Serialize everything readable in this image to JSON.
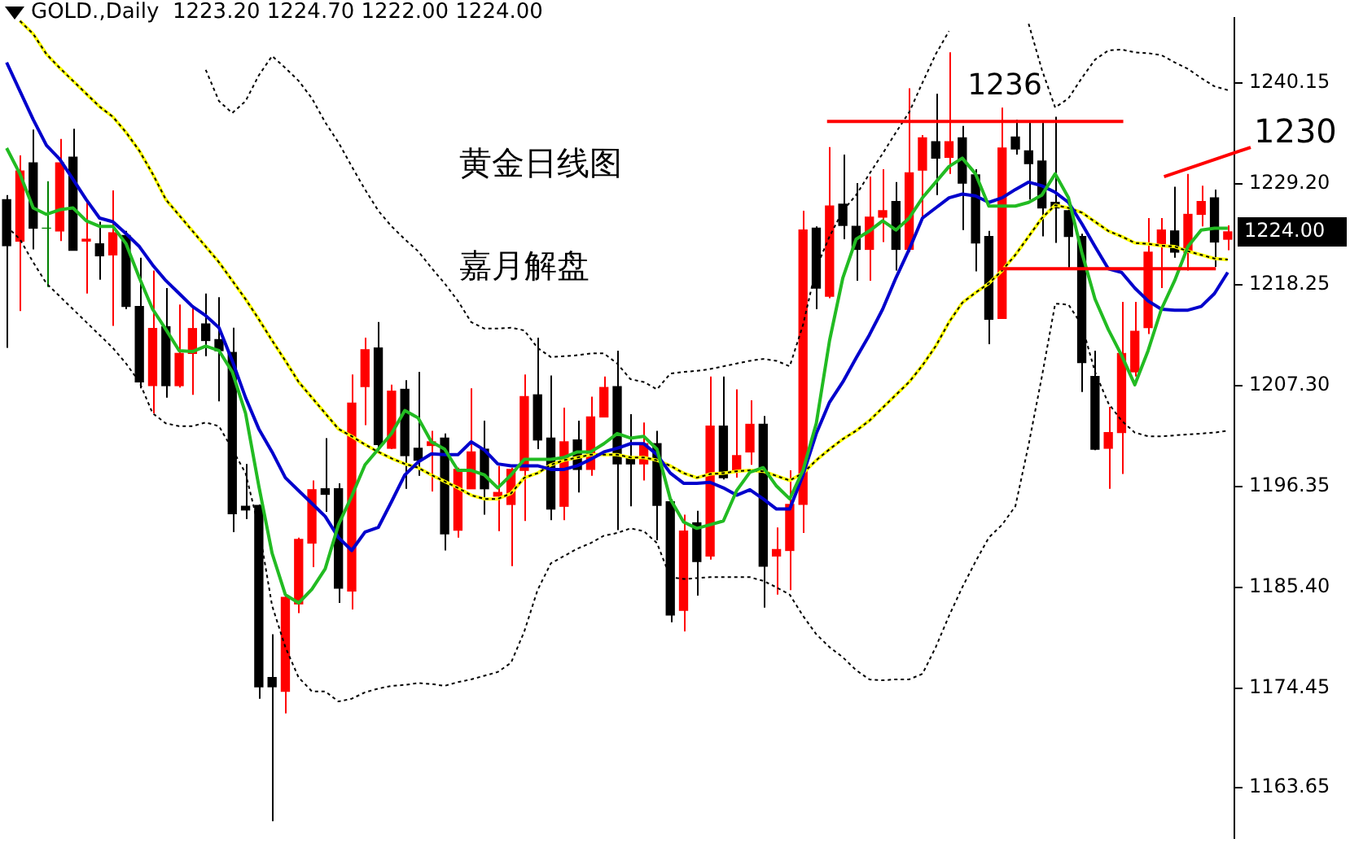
{
  "chart_data": {
    "type": "candlestick",
    "title": "GOLD.,Daily  1223.20 1224.70 1222.00 1224.00",
    "categories": [
      null,
      null,
      null,
      null,
      null,
      null,
      null,
      null,
      null,
      null,
      null,
      null,
      null,
      null,
      null,
      null,
      null,
      null,
      null,
      null,
      null,
      null,
      null,
      null,
      null,
      null,
      null,
      null,
      null,
      null,
      null,
      null,
      null,
      null,
      null,
      null,
      null,
      null,
      null,
      null,
      null,
      null,
      null,
      null,
      null,
      null,
      null,
      null,
      null,
      null,
      null,
      null,
      null,
      null,
      null,
      null,
      null,
      null,
      null,
      null,
      null,
      null,
      null,
      null,
      null,
      null,
      null,
      null,
      null,
      null,
      null,
      null,
      null,
      null,
      null,
      null,
      null,
      null,
      null,
      null,
      null,
      null,
      null,
      null,
      null,
      null,
      null,
      null,
      null,
      null,
      null,
      null,
      null
    ],
    "ohlc": [
      [
        1227.5,
        1228.0,
        1211.4,
        1222.5
      ],
      [
        1223.0,
        1232.3,
        1215.4,
        1230.6
      ],
      [
        1231.5,
        1235.1,
        1222.1,
        1224.4
      ],
      [
        1224.4,
        1229.5,
        1218.0,
        1224.4
      ],
      [
        1224.1,
        1234.1,
        1223.0,
        1231.5
      ],
      [
        1232.1,
        1235.2,
        1222.0,
        1222.0
      ],
      [
        1223.0,
        1227.3,
        1217.3,
        1223.2
      ],
      [
        1222.7,
        1225.1,
        1218.8,
        1221.4
      ],
      [
        1221.5,
        1228.5,
        1213.8,
        1223.9
      ],
      [
        1223.6,
        1224.1,
        1215.6,
        1215.9
      ],
      [
        1215.9,
        1221.2,
        1207.0,
        1207.7
      ],
      [
        1207.3,
        1219.8,
        1204.3,
        1213.5
      ],
      [
        1213.7,
        1217.9,
        1206.0,
        1207.3
      ],
      [
        1207.3,
        1216.1,
        1207.1,
        1210.8
      ],
      [
        1210.8,
        1215.8,
        1206.3,
        1213.5
      ],
      [
        1214.0,
        1217.3,
        1210.5,
        1212.2
      ],
      [
        1212.3,
        1216.9,
        1205.6,
        1211.1
      ],
      [
        1210.9,
        1213.6,
        1191.4,
        1193.4
      ],
      [
        1194.2,
        1198.8,
        1192.8,
        1193.8
      ],
      [
        1194.3,
        1194.4,
        1173.3,
        1174.6
      ],
      [
        1175.6,
        1180.3,
        1160.0,
        1174.6
      ],
      [
        1174.1,
        1184.5,
        1171.7,
        1184.3
      ],
      [
        1183.6,
        1190.8,
        1182.6,
        1190.6
      ],
      [
        1190.2,
        1197.0,
        1187.6,
        1196.0
      ],
      [
        1196.1,
        1201.6,
        1193.6,
        1195.5
      ],
      [
        1196.1,
        1196.7,
        1183.7,
        1185.3
      ],
      [
        1185.0,
        1208.5,
        1183.0,
        1205.4
      ],
      [
        1207.2,
        1212.5,
        1203.0,
        1211.2
      ],
      [
        1211.4,
        1214.2,
        1200.2,
        1200.9
      ],
      [
        1200.5,
        1207.4,
        1200.4,
        1206.7
      ],
      [
        1206.9,
        1207.9,
        1196.1,
        1199.7
      ],
      [
        1200.5,
        1208.8,
        1197.5,
        1199.2
      ],
      [
        1200.8,
        1202.4,
        1195.8,
        1201.2
      ],
      [
        1201.6,
        1202.1,
        1189.4,
        1191.2
      ],
      [
        1191.6,
        1198.4,
        1190.8,
        1198.2
      ],
      [
        1196.1,
        1207.0,
        1196.1,
        1200.1
      ],
      [
        1200.4,
        1203.5,
        1193.3,
        1196.1
      ],
      [
        1195.3,
        1198.6,
        1191.5,
        1195.7
      ],
      [
        1194.4,
        1198.4,
        1187.7,
        1198.2
      ],
      [
        1198.1,
        1208.5,
        1192.6,
        1206.1
      ],
      [
        1206.3,
        1212.5,
        1200.4,
        1201.4
      ],
      [
        1201.6,
        1208.4,
        1192.7,
        1193.9
      ],
      [
        1194.2,
        1204.9,
        1192.7,
        1201.2
      ],
      [
        1201.4,
        1203.5,
        1195.7,
        1198.2
      ],
      [
        1198.2,
        1206.1,
        1197.5,
        1203.9
      ],
      [
        1203.9,
        1208.3,
        1203.9,
        1207.1
      ],
      [
        1207.2,
        1211.1,
        1191.6,
        1198.8
      ],
      [
        1199.4,
        1204.2,
        1194.2,
        1198.8
      ],
      [
        1198.8,
        1203.3,
        1197.0,
        1201.0
      ],
      [
        1201.0,
        1202.4,
        1190.5,
        1194.3
      ],
      [
        1194.7,
        1195.0,
        1181.6,
        1182.4
      ],
      [
        1182.9,
        1193.3,
        1180.6,
        1191.5
      ],
      [
        1192.4,
        1193.7,
        1184.5,
        1188.2
      ],
      [
        1188.8,
        1208.3,
        1188.4,
        1202.9
      ],
      [
        1202.9,
        1208.3,
        1197.1,
        1197.3
      ],
      [
        1198.1,
        1206.9,
        1197.3,
        1199.7
      ],
      [
        1200.1,
        1205.7,
        1198.7,
        1203.1
      ],
      [
        1203.1,
        1204.0,
        1183.2,
        1187.7
      ],
      [
        1188.8,
        1191.9,
        1184.6,
        1189.5
      ],
      [
        1189.4,
        1198.1,
        1185.1,
        1194.4
      ],
      [
        1194.4,
        1226.3,
        1191.3,
        1224.2
      ],
      [
        1224.4,
        1224.6,
        1215.6,
        1217.9
      ],
      [
        1217.0,
        1233.2,
        1216.8,
        1226.8
      ],
      [
        1227.0,
        1232.4,
        1223.2,
        1224.7
      ],
      [
        1224.6,
        1229.3,
        1218.7,
        1222.1
      ],
      [
        1222.1,
        1230.0,
        1218.7,
        1225.6
      ],
      [
        1225.6,
        1230.8,
        1222.9,
        1226.3
      ],
      [
        1227.3,
        1229.4,
        1219.8,
        1222.1
      ],
      [
        1222.1,
        1239.6,
        1221.8,
        1230.4
      ],
      [
        1230.7,
        1234.5,
        1225.5,
        1234.2
      ],
      [
        1233.8,
        1239.0,
        1228.0,
        1232.0
      ],
      [
        1232.1,
        1243.5,
        1230.3,
        1233.8
      ],
      [
        1234.2,
        1235.5,
        1224.2,
        1229.3
      ],
      [
        1230.2,
        1230.8,
        1219.7,
        1222.8
      ],
      [
        1223.5,
        1224.1,
        1211.8,
        1214.5
      ],
      [
        1214.6,
        1237.5,
        1214.6,
        1233.1
      ],
      [
        1234.3,
        1236.2,
        1232.4,
        1233.0
      ],
      [
        1232.8,
        1235.9,
        1227.5,
        1231.4
      ],
      [
        1231.7,
        1235.9,
        1223.5,
        1226.6
      ],
      [
        1227.2,
        1236.5,
        1222.8,
        1226.6
      ],
      [
        1226.3,
        1226.6,
        1220.1,
        1223.5
      ],
      [
        1223.5,
        1223.8,
        1206.6,
        1209.8
      ],
      [
        1208.3,
        1211.1,
        1200.3,
        1200.4
      ],
      [
        1200.5,
        1205.0,
        1196.1,
        1202.2
      ],
      [
        1202.2,
        1216.4,
        1197.7,
        1210.8
      ],
      [
        1208.8,
        1216.4,
        1208.3,
        1213.2
      ],
      [
        1213.6,
        1225.5,
        1212.9,
        1221.8
      ],
      [
        1222.7,
        1225.5,
        1217.9,
        1224.2
      ],
      [
        1224.1,
        1228.9,
        1221.2,
        1221.8
      ],
      [
        1221.8,
        1230.3,
        1219.8,
        1225.9
      ],
      [
        1225.9,
        1229.0,
        1224.6,
        1227.3
      ],
      [
        1227.7,
        1228.6,
        1220.2,
        1222.9
      ],
      [
        1223.2,
        1224.7,
        1222.0,
        1224.0
      ]
    ],
    "colors": [
      "#000000",
      "#ff0000",
      "#000000",
      "#008000",
      "#ff0000",
      "#000000",
      "#ff0000",
      "#000000",
      "#ff0000",
      "#000000",
      "#000000",
      "#ff0000",
      "#000000",
      "#ff0000",
      "#ff0000",
      "#000000",
      "#000000",
      "#000000",
      "#000000",
      "#000000",
      "#000000",
      "#ff0000",
      "#ff0000",
      "#ff0000",
      "#000000",
      "#000000",
      "#ff0000",
      "#ff0000",
      "#000000",
      "#ff0000",
      "#000000",
      "#000000",
      "#ff0000",
      "#000000",
      "#ff0000",
      "#ff0000",
      "#000000",
      "#ff0000",
      "#ff0000",
      "#ff0000",
      "#000000",
      "#000000",
      "#ff0000",
      "#000000",
      "#ff0000",
      "#ff0000",
      "#000000",
      "#000000",
      "#ff0000",
      "#000000",
      "#000000",
      "#ff0000",
      "#000000",
      "#ff0000",
      "#000000",
      "#ff0000",
      "#ff0000",
      "#000000",
      "#ff0000",
      "#ff0000",
      "#ff0000",
      "#000000",
      "#ff0000",
      "#000000",
      "#000000",
      "#ff0000",
      "#ff0000",
      "#000000",
      "#ff0000",
      "#ff0000",
      "#000000",
      "#ff0000",
      "#000000",
      "#000000",
      "#000000",
      "#ff0000",
      "#000000",
      "#000000",
      "#000000",
      "#000000",
      "#000000",
      "#000000",
      "#000000",
      "#ff0000",
      "#ff0000",
      "#ff0000",
      "#ff0000",
      "#ff0000",
      "#000000",
      "#ff0000",
      "#ff0000",
      "#000000",
      "#ff0000"
    ],
    "series": [
      {
        "type": "line",
        "color": "#000000",
        "line_style": "dotted",
        "values": [
          null,
          null,
          null,
          null,
          null,
          null,
          null,
          null,
          null,
          null,
          null,
          null,
          null,
          null,
          null,
          1241.6,
          1238.2,
          1236.9,
          1238.2,
          1241.0,
          1243.1,
          1241.8,
          1240.4,
          1238.5,
          1235.9,
          1233.7,
          1231.1,
          1228.6,
          1226.3,
          1224.6,
          1223.2,
          1221.9,
          1220.1,
          1218.4,
          1216.5,
          1214.2,
          1213.5,
          1213.5,
          1213.6,
          1213.3,
          1211.4,
          1210.4,
          1210.5,
          1210.6,
          1210.8,
          1210.8,
          1209.7,
          1208.0,
          1207.7,
          1206.9,
          1208.6,
          1208.8,
          1208.9,
          1209.1,
          1209.4,
          1209.7,
          1210.0,
          1210.2,
          1210.0,
          1209.4,
          1213.9,
          1220.1,
          1223.5,
          1226.3,
          1228.0,
          1230.3,
          1232.5,
          1234.8,
          1237.0,
          1240.2,
          1243.3,
          1245.8,
          null,
          null,
          null,
          null,
          null,
          1246.6,
          1241.6,
          1237.5,
          1238.5,
          1240.7,
          1242.7,
          1243.7,
          1243.8,
          1243.5,
          1243.4,
          1243.2,
          1242.4,
          1241.7,
          1240.7,
          1239.8,
          1239.4
        ]
      },
      {
        "type": "line",
        "color": "#000000",
        "line_style": "dotted",
        "values": [
          1224.6,
          1223.2,
          1220.7,
          1218.4,
          1217.0,
          1215.6,
          1214.2,
          1212.8,
          1211.4,
          1209.7,
          1207.7,
          1204.3,
          1203.2,
          1202.9,
          1202.9,
          1203.3,
          1202.9,
          1200.4,
          1197.8,
          1191.9,
          1183.4,
          1178.9,
          1175.6,
          1174.1,
          1174.1,
          1173.0,
          1173.3,
          1174.0,
          1174.4,
          1174.7,
          1174.8,
          1175.0,
          1174.9,
          1174.7,
          1175.1,
          1175.4,
          1175.8,
          1176.2,
          1177.2,
          1180.6,
          1185.1,
          1188.0,
          1188.8,
          1189.6,
          1190.2,
          1191.0,
          1191.3,
          1191.8,
          1191.5,
          1190.2,
          1186.5,
          1186.3,
          1186.4,
          1186.5,
          1186.5,
          1186.5,
          1186.5,
          1186.1,
          1185.4,
          1184.6,
          1182.3,
          1180.3,
          1178.9,
          1177.8,
          1176.4,
          1175.4,
          1175.3,
          1175.4,
          1175.4,
          1176.0,
          1178.9,
          1182.3,
          1185.4,
          1188.2,
          1190.8,
          1192.2,
          1194.2,
          1200.9,
          1208.3,
          1216.2,
          1216.1,
          1213.9,
          1208.8,
          1205.4,
          1203.5,
          1202.2,
          1201.8,
          1201.8,
          1201.9,
          1202.0,
          1202.1,
          1202.2,
          1202.4
        ]
      },
      {
        "type": "line",
        "color": "#ffff00",
        "values": [
          null,
          1246.9,
          1245.5,
          1243.3,
          1241.8,
          1240.4,
          1239.0,
          1237.6,
          1236.5,
          1234.8,
          1232.8,
          1230.3,
          1227.5,
          1225.8,
          1224.1,
          1222.4,
          1220.7,
          1218.7,
          1216.7,
          1214.5,
          1212.2,
          1210.0,
          1207.7,
          1206.0,
          1204.3,
          1202.6,
          1201.8,
          1200.9,
          1200.1,
          1199.4,
          1198.8,
          1198.4,
          1197.6,
          1196.9,
          1196.2,
          1195.4,
          1195.0,
          1195.0,
          1195.6,
          1197.3,
          1197.8,
          1198.7,
          1199.2,
          1199.5,
          1199.8,
          1199.8,
          1199.8,
          1199.5,
          1199.5,
          1199.2,
          1198.6,
          1197.8,
          1197.3,
          1197.7,
          1197.8,
          1198.0,
          1198.1,
          1198.0,
          1197.5,
          1197.0,
          1197.8,
          1199.2,
          1200.4,
          1201.5,
          1202.4,
          1203.5,
          1204.9,
          1206.3,
          1207.7,
          1209.5,
          1211.6,
          1214.2,
          1216.3,
          1217.4,
          1218.4,
          1219.8,
          1221.5,
          1223.5,
          1225.5,
          1226.9,
          1226.6,
          1226.1,
          1225.1,
          1224.1,
          1223.5,
          1222.8,
          1222.7,
          1222.5,
          1222.4,
          1221.9,
          1221.5,
          1221.1,
          1221.0
        ]
      },
      {
        "type": "line",
        "color": "#000000",
        "line_style": "dotted",
        "values": [
          null,
          1246.9,
          1245.5,
          1243.3,
          1241.8,
          1240.4,
          1239.0,
          1237.6,
          1236.5,
          1234.8,
          1232.8,
          1230.3,
          1227.5,
          1225.8,
          1224.1,
          1222.4,
          1220.7,
          1218.7,
          1216.7,
          1214.5,
          1212.2,
          1210.0,
          1207.7,
          1206.0,
          1204.3,
          1202.6,
          1201.8,
          1200.9,
          1200.1,
          1199.4,
          1198.8,
          1198.4,
          1197.6,
          1196.9,
          1196.2,
          1195.4,
          1195.0,
          1195.0,
          1195.6,
          1197.3,
          1197.8,
          1198.7,
          1199.2,
          1199.5,
          1199.8,
          1199.8,
          1199.8,
          1199.5,
          1199.5,
          1199.2,
          1198.6,
          1197.8,
          1197.3,
          1197.7,
          1197.8,
          1198.0,
          1198.1,
          1198.0,
          1197.5,
          1197.0,
          1197.8,
          1199.2,
          1200.4,
          1201.5,
          1202.4,
          1203.5,
          1204.9,
          1206.3,
          1207.7,
          1209.5,
          1211.6,
          1214.2,
          1216.3,
          1217.4,
          1218.4,
          1219.8,
          1221.5,
          1223.5,
          1225.5,
          1226.9,
          1226.6,
          1226.1,
          1225.1,
          1224.1,
          1223.5,
          1222.8,
          1222.7,
          1222.5,
          1222.4,
          1221.9,
          1221.5,
          1221.1,
          1221.0
        ]
      },
      {
        "type": "line",
        "color": "#0000cc",
        "values": [
          1242.4,
          1239.3,
          1236.2,
          1233.4,
          1231.9,
          1229.7,
          1227.5,
          1225.5,
          1225.1,
          1223.8,
          1222.4,
          1220.4,
          1218.7,
          1217.3,
          1215.9,
          1214.9,
          1213.6,
          1210.0,
          1206.0,
          1202.6,
          1200.1,
          1197.3,
          1195.9,
          1194.5,
          1193.1,
          1190.8,
          1189.4,
          1191.4,
          1191.9,
          1194.7,
          1197.6,
          1199.0,
          1199.9,
          1199.8,
          1199.8,
          1201.2,
          1200.3,
          1198.8,
          1198.6,
          1198.6,
          1198.6,
          1198.2,
          1198.2,
          1198.6,
          1199.3,
          1200.1,
          1200.5,
          1201.0,
          1201.0,
          1199.8,
          1197.8,
          1196.7,
          1196.7,
          1196.8,
          1196.2,
          1195.4,
          1196.0,
          1195.0,
          1193.9,
          1193.9,
          1197.6,
          1202.1,
          1205.5,
          1207.7,
          1210.3,
          1212.8,
          1215.6,
          1219.0,
          1222.1,
          1225.5,
          1226.6,
          1227.7,
          1228.1,
          1227.9,
          1227.2,
          1227.7,
          1228.6,
          1229.4,
          1229.0,
          1228.3,
          1227.2,
          1224.9,
          1222.4,
          1220.0,
          1219.6,
          1217.9,
          1216.5,
          1215.6,
          1215.5,
          1215.5,
          1215.9,
          1217.3,
          1219.6
        ]
      },
      {
        "type": "line",
        "color": "#22bb22",
        "values": [
          1233.1,
          1230.3,
          1226.6,
          1225.9,
          1226.4,
          1226.6,
          1225.2,
          1224.6,
          1224.6,
          1222.7,
          1219.0,
          1215.6,
          1213.4,
          1211.1,
          1211.0,
          1211.6,
          1211.1,
          1208.8,
          1204.3,
          1196.4,
          1189.1,
          1184.6,
          1183.7,
          1185.2,
          1187.4,
          1192.2,
          1195.3,
          1198.7,
          1200.4,
          1202.1,
          1204.6,
          1203.8,
          1201.2,
          1200.4,
          1198.1,
          1198.1,
          1197.6,
          1196.2,
          1197.6,
          1199.3,
          1199.3,
          1199.3,
          1199.5,
          1200.1,
          1200.1,
          1201.0,
          1202.1,
          1201.6,
          1201.8,
          1200.4,
          1195.0,
          1192.5,
          1191.8,
          1192.2,
          1192.6,
          1195.9,
          1197.9,
          1198.4,
          1196.4,
          1195.0,
          1198.1,
          1203.2,
          1212.2,
          1219.0,
          1223.2,
          1224.1,
          1225.2,
          1224.2,
          1225.5,
          1227.7,
          1229.4,
          1231.1,
          1232.0,
          1230.3,
          1226.8,
          1226.8,
          1226.8,
          1227.2,
          1228.0,
          1230.3,
          1227.7,
          1221.8,
          1216.7,
          1213.4,
          1210.6,
          1207.4,
          1211.1,
          1215.6,
          1218.7,
          1222.4,
          1224.2,
          1224.4,
          1224.4
        ]
      }
    ],
    "ylim": [
      1158.2,
      1247.2
    ],
    "yticks": [
      1163.65,
      1174.45,
      {
        "value": 1185.4,
        "label": "1185.40"
      },
      1196.35,
      {
        "value": 1207.3,
        "label": "1207.30"
      },
      1218.25,
      {
        "value": 1229.2,
        "label": "1229.20"
      },
      1240.15
    ],
    "ref_lines": [
      {
        "axis": "y",
        "value": 1236,
        "label": "1236",
        "color": "#ff0000"
      },
      {
        "axis": "y",
        "value": 1220,
        "color": "#ff0000"
      }
    ],
    "annotations": [
      "黄金日线图",
      "嘉月解盘",
      "1230",
      "1224.00"
    ]
  }
}
